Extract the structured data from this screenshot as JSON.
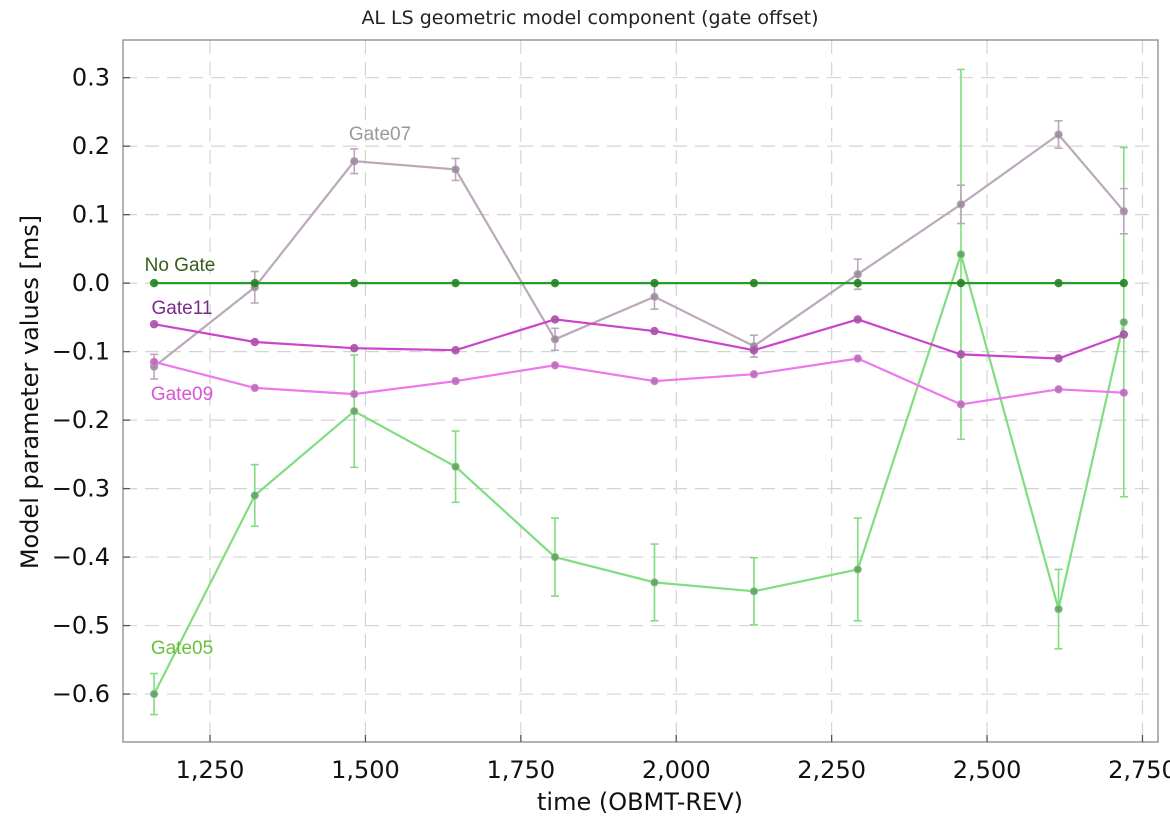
{
  "chart_data": {
    "type": "line",
    "title": "AL LS geometric model component (gate offset)",
    "xlabel": "time (OBMT-REV)",
    "ylabel": "Model parameter values [ms]",
    "xlim": [
      1110,
      2775
    ],
    "ylim": [
      -0.67,
      0.355
    ],
    "xticks": [
      1250,
      1500,
      1750,
      2000,
      2250,
      2500,
      2750
    ],
    "xtick_labels": [
      "1,250",
      "1,500",
      "1,750",
      "2,000",
      "2,250",
      "2,500",
      "2,750"
    ],
    "yticks": [
      0.3,
      0.2,
      0.1,
      0.0,
      -0.1,
      -0.2,
      -0.3,
      -0.4,
      -0.5,
      -0.6
    ],
    "ytick_labels": [
      "0.3",
      "0.2",
      "0.1",
      "0.0",
      "−0.1",
      "−0.2",
      "−0.3",
      "−0.4",
      "−0.5",
      "−0.6"
    ],
    "grid": true,
    "x": [
      1160,
      1322,
      1482,
      1645,
      1805,
      1965,
      2125,
      2292,
      2458,
      2615,
      2720
    ],
    "series": [
      {
        "name": "No Gate",
        "label": "No Gate",
        "line_color": "#22a022",
        "marker_color": "#2e7a2e",
        "label_color": "#3a5a1a",
        "values": [
          0.0,
          0.0,
          0.0,
          0.0,
          0.0,
          0.0,
          0.0,
          0.0,
          0.0,
          0.0,
          0.0
        ],
        "errors": null
      },
      {
        "name": "Gate11",
        "label": "Gate11",
        "line_color": "#cc44cc",
        "marker_color": "#9c5a9c",
        "label_color": "#7a2a8a",
        "values": [
          -0.06,
          -0.086,
          -0.095,
          -0.098,
          -0.053,
          -0.07,
          -0.098,
          -0.053,
          -0.104,
          -0.11,
          -0.075
        ],
        "errors": null
      },
      {
        "name": "Gate09",
        "label": "Gate09",
        "line_color": "#ee77ee",
        "marker_color": "#b070b0",
        "label_color": "#d456d4",
        "values": [
          -0.115,
          -0.153,
          -0.162,
          -0.143,
          -0.12,
          -0.143,
          -0.133,
          -0.11,
          -0.177,
          -0.155,
          -0.16
        ],
        "errors": null
      },
      {
        "name": "Gate07",
        "label": "Gate07",
        "line_color": "#bba8bb",
        "marker_color": "#9d8a9d",
        "label_color": "#9a9a9a",
        "values": [
          -0.122,
          -0.006,
          0.178,
          0.166,
          -0.082,
          -0.02,
          -0.092,
          0.013,
          0.115,
          0.217,
          0.105
        ],
        "errors": [
          0.018,
          0.023,
          0.018,
          0.016,
          0.016,
          0.018,
          0.016,
          0.022,
          0.028,
          0.02,
          0.033
        ]
      },
      {
        "name": "Gate05",
        "label": "Gate05",
        "line_color": "#80dd80",
        "marker_color": "#6a9a6a",
        "label_color": "#6abf3a",
        "values": [
          -0.6,
          -0.31,
          -0.187,
          -0.268,
          -0.4,
          -0.437,
          -0.45,
          -0.418,
          0.042,
          -0.476,
          -0.057
        ],
        "errors": [
          0.03,
          0.045,
          0.082,
          0.052,
          0.057,
          0.056,
          0.049,
          0.075,
          0.27,
          0.058,
          0.255
        ]
      }
    ]
  }
}
